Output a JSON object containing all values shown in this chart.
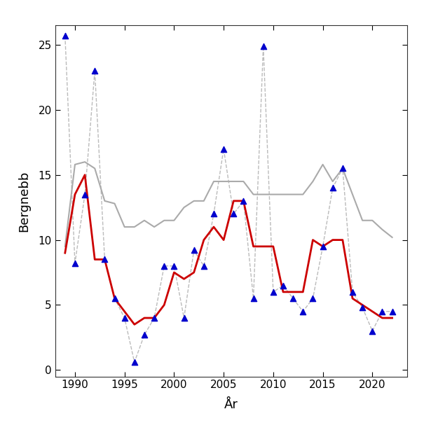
{
  "years": [
    1989,
    1990,
    1991,
    1992,
    1993,
    1994,
    1995,
    1996,
    1997,
    1998,
    1999,
    2000,
    2001,
    2002,
    2003,
    2004,
    2005,
    2006,
    2007,
    2008,
    2009,
    2010,
    2011,
    2012,
    2013,
    2014,
    2015,
    2016,
    2017,
    2018,
    2019,
    2020,
    2021,
    2022
  ],
  "blue_points": [
    25.7,
    8.2,
    13.5,
    23.0,
    8.5,
    5.5,
    4.0,
    0.6,
    2.7,
    4.0,
    8.0,
    8.0,
    4.0,
    9.2,
    8.0,
    12.0,
    17.0,
    12.0,
    13.0,
    5.5,
    24.9,
    6.0,
    6.5,
    5.5,
    4.5,
    5.5,
    9.5,
    14.0,
    15.5,
    6.0,
    4.8,
    3.0,
    4.5,
    4.5
  ],
  "red_line": [
    9.0,
    13.5,
    15.0,
    8.5,
    8.5,
    5.5,
    4.5,
    3.5,
    4.0,
    4.0,
    5.0,
    7.5,
    7.0,
    7.5,
    10.0,
    11.0,
    10.0,
    13.0,
    13.0,
    9.5,
    9.5,
    9.5,
    6.0,
    6.0,
    6.0,
    10.0,
    9.5,
    10.0,
    10.0,
    5.5,
    5.0,
    4.5,
    4.0,
    4.0
  ],
  "gray_line": [
    9.5,
    15.8,
    16.0,
    15.5,
    13.0,
    12.8,
    11.0,
    11.0,
    11.5,
    11.0,
    11.5,
    11.5,
    12.5,
    13.0,
    13.0,
    14.5,
    14.5,
    14.5,
    14.5,
    13.5,
    13.5,
    13.5,
    13.5,
    13.5,
    13.5,
    14.5,
    15.8,
    14.5,
    15.5,
    13.5,
    11.5,
    11.5,
    10.8,
    10.2
  ],
  "xlabel": "År",
  "ylabel": "Bergnebb",
  "xlim": [
    1988.0,
    2023.5
  ],
  "ylim": [
    -0.5,
    26.5
  ],
  "xticks": [
    1990,
    1995,
    2000,
    2005,
    2010,
    2015,
    2020
  ],
  "yticks": [
    0,
    5,
    10,
    15,
    20,
    25
  ],
  "blue_color": "#0000CD",
  "red_color": "#CC0000",
  "gray_color": "#AAAAAA",
  "dashed_color": "#BBBBBB",
  "bg_color": "#FFFFFF",
  "panel_bg": "#FFFFFF"
}
